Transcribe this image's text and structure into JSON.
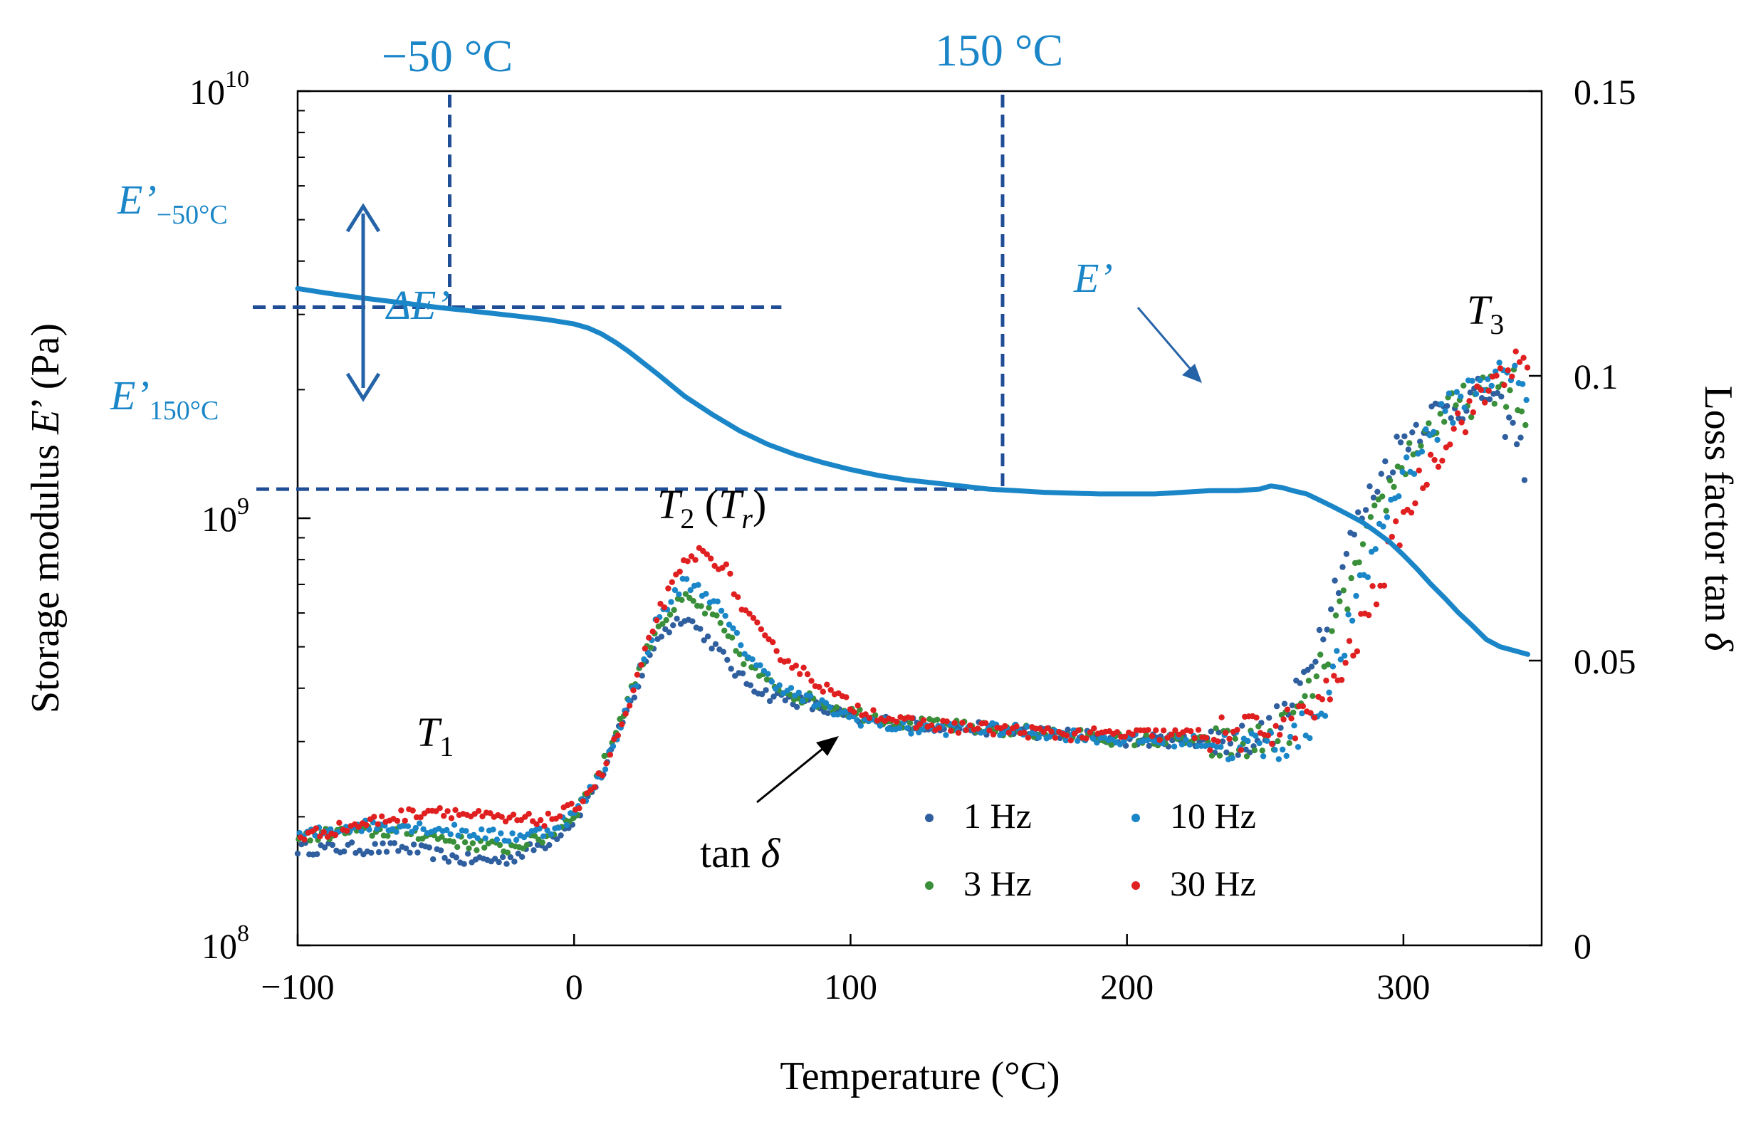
{
  "chart_data": {
    "type": "scatter",
    "title": "",
    "xlabel": "Temperature (°C)",
    "ylabel_left": {
      "pre": "Storage modulus ",
      "italic": "E",
      "post": "’ (Pa)"
    },
    "ylabel_right": {
      "pre": "Loss factor tan ",
      "italic": "δ"
    },
    "xlim": [
      -100,
      350
    ],
    "ylim_left_log10": [
      8,
      10
    ],
    "ylim_right": [
      0,
      0.15
    ],
    "x_ticks": [
      {
        "value": -100,
        "label": "−100"
      },
      {
        "value": 0,
        "label": "0"
      },
      {
        "value": 100,
        "label": "100"
      },
      {
        "value": 200,
        "label": "200"
      },
      {
        "value": 300,
        "label": "300"
      }
    ],
    "y_left_ticks": [
      {
        "exp": 8,
        "base": "10",
        "sup": "8"
      },
      {
        "exp": 9,
        "base": "10",
        "sup": "9"
      },
      {
        "exp": 10,
        "base": "10",
        "sup": "10"
      }
    ],
    "y_right_ticks": [
      {
        "value": 0,
        "label": "0"
      },
      {
        "value": 0.05,
        "label": "0.05"
      },
      {
        "value": 0.1,
        "label": "0.1"
      },
      {
        "value": 0.15,
        "label": "0.15"
      }
    ],
    "storage_modulus_curve": {
      "name": "E’",
      "color": "#1a86c8",
      "x": [
        -100,
        -90,
        -80,
        -70,
        -60,
        -50,
        -40,
        -30,
        -20,
        -10,
        0,
        5,
        10,
        15,
        20,
        30,
        40,
        50,
        60,
        70,
        80,
        90,
        100,
        110,
        120,
        130,
        140,
        150,
        160,
        170,
        180,
        190,
        200,
        210,
        220,
        230,
        240,
        248,
        252,
        256,
        260,
        265,
        270,
        275,
        280,
        285,
        290,
        295,
        300,
        305,
        310,
        315,
        320,
        325,
        330,
        335,
        340,
        345
      ],
      "y": [
        3450000000.0,
        3370000000.0,
        3300000000.0,
        3240000000.0,
        3180000000.0,
        3120000000.0,
        3070000000.0,
        3020000000.0,
        2970000000.0,
        2920000000.0,
        2850000000.0,
        2790000000.0,
        2700000000.0,
        2580000000.0,
        2450000000.0,
        2180000000.0,
        1930000000.0,
        1750000000.0,
        1600000000.0,
        1490000000.0,
        1410000000.0,
        1350000000.0,
        1300000000.0,
        1260000000.0,
        1230000000.0,
        1210000000.0,
        1190000000.0,
        1170000000.0,
        1160000000.0,
        1150000000.0,
        1145000000.0,
        1140000000.0,
        1140000000.0,
        1140000000.0,
        1150000000.0,
        1160000000.0,
        1160000000.0,
        1170000000.0,
        1190000000.0,
        1180000000.0,
        1160000000.0,
        1140000000.0,
        1100000000.0,
        1060000000.0,
        1020000000.0,
        980000000.0,
        930000000.0,
        880000000.0,
        820000000.0,
        760000000.0,
        700000000.0,
        650000000.0,
        600000000.0,
        560000000.0,
        520000000.0,
        500000000.0,
        490000000.0,
        480000000.0
      ]
    },
    "tan_delta_series": [
      {
        "name": "1 Hz",
        "color": "#2f5f9e",
        "x": [
          -100,
          -80,
          -60,
          -40,
          -25,
          -10,
          0,
          10,
          20,
          30,
          40,
          50,
          60,
          70,
          80,
          100,
          120,
          150,
          180,
          200,
          220,
          240,
          250,
          260,
          270,
          280,
          290,
          300,
          310,
          320,
          330,
          340,
          345
        ],
        "y": [
          0.017,
          0.017,
          0.017,
          0.015,
          0.015,
          0.018,
          0.022,
          0.03,
          0.042,
          0.054,
          0.058,
          0.053,
          0.047,
          0.044,
          0.043,
          0.04,
          0.039,
          0.038,
          0.037,
          0.036,
          0.036,
          0.036,
          0.037,
          0.042,
          0.055,
          0.07,
          0.081,
          0.089,
          0.093,
          0.095,
          0.097,
          0.09,
          0.083
        ]
      },
      {
        "name": "3 Hz",
        "color": "#3a8f3a",
        "x": [
          -100,
          -80,
          -60,
          -40,
          -25,
          -10,
          0,
          10,
          20,
          30,
          40,
          50,
          60,
          70,
          80,
          100,
          120,
          150,
          180,
          200,
          220,
          240,
          250,
          260,
          270,
          280,
          290,
          300,
          310,
          320,
          330,
          340,
          345
        ],
        "y": [
          0.019,
          0.02,
          0.02,
          0.018,
          0.017,
          0.019,
          0.023,
          0.031,
          0.044,
          0.056,
          0.061,
          0.058,
          0.051,
          0.046,
          0.044,
          0.041,
          0.039,
          0.038,
          0.037,
          0.036,
          0.036,
          0.035,
          0.036,
          0.039,
          0.048,
          0.062,
          0.075,
          0.085,
          0.091,
          0.095,
          0.097,
          0.098,
          0.09
        ]
      },
      {
        "name": "10 Hz",
        "color": "#1a86c8",
        "x": [
          -100,
          -80,
          -60,
          -40,
          -25,
          -10,
          0,
          10,
          20,
          30,
          40,
          50,
          60,
          70,
          80,
          100,
          120,
          150,
          180,
          200,
          220,
          240,
          250,
          260,
          270,
          280,
          290,
          300,
          310,
          320,
          330,
          340,
          345
        ],
        "y": [
          0.019,
          0.021,
          0.021,
          0.02,
          0.019,
          0.02,
          0.023,
          0.03,
          0.043,
          0.057,
          0.064,
          0.061,
          0.053,
          0.047,
          0.044,
          0.04,
          0.038,
          0.038,
          0.037,
          0.036,
          0.036,
          0.035,
          0.035,
          0.036,
          0.041,
          0.055,
          0.071,
          0.083,
          0.09,
          0.096,
          0.1,
          0.1,
          0.097
        ]
      },
      {
        "name": "30 Hz",
        "color": "#e02020",
        "x": [
          -100,
          -80,
          -60,
          -50,
          -40,
          -25,
          -10,
          0,
          10,
          20,
          30,
          40,
          45,
          50,
          55,
          60,
          70,
          80,
          100,
          120,
          150,
          180,
          200,
          220,
          240,
          250,
          260,
          270,
          280,
          290,
          300,
          310,
          320,
          330,
          335,
          340,
          345
        ],
        "y": [
          0.019,
          0.021,
          0.023,
          0.024,
          0.023,
          0.022,
          0.022,
          0.024,
          0.03,
          0.042,
          0.058,
          0.067,
          0.069,
          0.068,
          0.066,
          0.06,
          0.053,
          0.049,
          0.042,
          0.039,
          0.038,
          0.037,
          0.037,
          0.037,
          0.037,
          0.038,
          0.039,
          0.042,
          0.05,
          0.062,
          0.075,
          0.085,
          0.092,
          0.097,
          0.101,
          0.102,
          0.1
        ]
      }
    ],
    "annotations": {
      "ref_neg50": "−50 °C",
      "ref_150": "150 °C",
      "e_label": "E’",
      "e_neg50_main": "E’",
      "e_neg50_sub": "−50°C",
      "e_150_main": "E’",
      "e_150_sub": "150°C",
      "delta_e": "ΔE’",
      "t1_main": "T",
      "t1_sub": "1",
      "t2_main": "T",
      "t2_sub": "2",
      "t2_paren_main": "T",
      "t2_paren_sub": "r",
      "t3_main": "T",
      "t3_sub": "3",
      "tan_delta": "tan ",
      "tan_delta_symbol": "δ"
    },
    "legend": [
      "1 Hz",
      "3 Hz",
      "10 Hz",
      "30 Hz"
    ],
    "colors": {
      "curve": "#1a86c8",
      "dashed": "#1f4e96",
      "arrow": "#2563a8"
    }
  }
}
